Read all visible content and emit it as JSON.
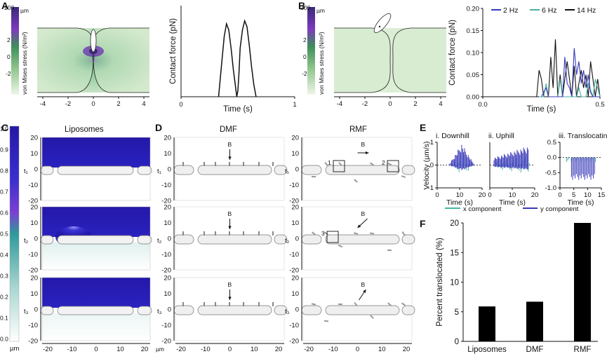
{
  "panels": {
    "A": "A",
    "B": "B",
    "C": "C",
    "D": "D",
    "E": "E",
    "F": "F"
  },
  "colorbar_AB": {
    "label": "von Mises stress (N/m²)",
    "unit": "µm",
    "ticks": [
      "200",
      "2",
      "0",
      "-2"
    ],
    "colors": {
      "top": "#3b2a7a",
      "mid": "#7a35b8",
      "green": "#3f8f5a",
      "low": "#e9f3e1"
    }
  },
  "stress_map_axis": {
    "ticks": [
      "-4",
      "-2",
      "0",
      "2",
      "4"
    ]
  },
  "chart_data": [
    {
      "id": "A-contact-force",
      "type": "line",
      "ylabel": "Contact force (pN)",
      "xlabel": "Time (s)",
      "xlim": [
        0,
        1
      ],
      "ylim": [
        0,
        30
      ],
      "xticks": [
        "0",
        "1"
      ],
      "yticks": [],
      "series": [
        {
          "name": "contact",
          "color": "#111111",
          "x": [
            0.33,
            0.34,
            0.36,
            0.38,
            0.4,
            0.42,
            0.44,
            0.46,
            0.48,
            0.49,
            0.5,
            0.51,
            0.52,
            0.54,
            0.56,
            0.58,
            0.6,
            0.62,
            0.64,
            0.66
          ],
          "y": [
            0,
            4,
            12,
            20,
            24,
            22,
            16,
            9,
            3,
            0,
            2,
            8,
            16,
            22,
            25,
            23,
            17,
            10,
            4,
            0
          ]
        }
      ]
    },
    {
      "id": "B-contact-force",
      "type": "line",
      "ylabel": "Contact force (pN)",
      "xlabel": "Time (s)",
      "xlim": [
        0,
        0.5
      ],
      "ylim": [
        0,
        0.2
      ],
      "xticks": [
        "0.0",
        "0.5"
      ],
      "yticks": [
        "0.00",
        "0.05",
        "0.10",
        "0.15",
        "0.20"
      ],
      "legend": [
        "2 Hz",
        "6 Hz",
        "14 Hz"
      ],
      "series": [
        {
          "name": "2 Hz",
          "color": "#3838b8",
          "x": [
            0.25,
            0.26,
            0.27,
            0.28,
            0.29,
            0.3,
            0.34,
            0.35,
            0.36,
            0.37,
            0.38,
            0.39,
            0.4,
            0.41,
            0.42,
            0.43,
            0.44,
            0.45,
            0.46,
            0.47,
            0.5
          ],
          "y": [
            0,
            0.01,
            0.02,
            0,
            0,
            0,
            0,
            0.09,
            0.03,
            0.02,
            0,
            0.11,
            0.05,
            0.08,
            0.03,
            0.06,
            0.02,
            0.05,
            0.01,
            0,
            0
          ]
        },
        {
          "name": "6 Hz",
          "color": "#47b3a6",
          "x": [
            0.24,
            0.26,
            0.27,
            0.28,
            0.3,
            0.32,
            0.33,
            0.34,
            0.36,
            0.4,
            0.41,
            0.42,
            0.44,
            0.45,
            0.47,
            0.48,
            0.5
          ],
          "y": [
            0,
            0,
            0.03,
            0,
            0,
            0,
            0.04,
            0,
            0,
            0,
            0.02,
            0,
            0,
            0.03,
            0,
            0.04,
            0
          ]
        },
        {
          "name": "14 Hz",
          "color": "#111111",
          "x": [
            0.2,
            0.23,
            0.24,
            0.25,
            0.26,
            0.28,
            0.29,
            0.3,
            0.31,
            0.32,
            0.33,
            0.34,
            0.36,
            0.38,
            0.39,
            0.4,
            0.42,
            0.43,
            0.44,
            0.45,
            0.46,
            0.48,
            0.49,
            0.5
          ],
          "y": [
            0,
            0,
            0.06,
            0.04,
            0,
            0,
            0.09,
            0.02,
            0.13,
            0,
            0.05,
            0,
            0.08,
            0,
            0.07,
            0,
            0.06,
            0.02,
            0.05,
            0,
            0.08,
            0,
            0.04,
            0
          ]
        }
      ]
    },
    {
      "id": "E-downhill",
      "type": "bar",
      "title": "i. Downhill",
      "xlabel": "Time (s)",
      "ylabel": "Velocity (µm/s)",
      "xlim": [
        0,
        20
      ],
      "ylim": [
        -1,
        1
      ],
      "xticks": [
        "0",
        "10",
        "20"
      ],
      "yticks": [
        "1",
        "0",
        "-1"
      ]
    },
    {
      "id": "E-uphill",
      "type": "bar",
      "title": "ii. Uphill",
      "xlabel": "Time (s)",
      "xlim": [
        0,
        20
      ],
      "ylim": [
        -1,
        1
      ],
      "xticks": [
        "0",
        "10",
        "20"
      ]
    },
    {
      "id": "E-translocating",
      "type": "bar",
      "title": "iii. Translocating",
      "xlabel": "Time (s)",
      "xlim": [
        0,
        15
      ],
      "ylim": [
        -1,
        0.5
      ],
      "xticks": [
        "0",
        "5",
        "10",
        "15"
      ],
      "yticks": [
        "0.5",
        "0.0",
        "-0.5",
        "-1.0"
      ]
    },
    {
      "id": "F-percent-translocated",
      "type": "bar",
      "ylabel": "Percent translocated (%)",
      "categories": [
        "Liposomes",
        "DMF",
        "RMF"
      ],
      "values": [
        5.9,
        6.7,
        20
      ],
      "ylim": [
        0,
        20
      ],
      "yticks": [
        "0",
        "5",
        "10",
        "15",
        "20"
      ]
    }
  ],
  "E_legend": {
    "x": "x component",
    "y": "y component",
    "x_color": "#47b3a6",
    "y_color": "#3838b8"
  },
  "C": {
    "title": "Liposomes",
    "colorbar_ticks": [
      "1.0",
      "0.9",
      "0.8",
      "0.7",
      "0.6",
      "0.5",
      "0.4",
      "0.3",
      "0.2",
      "0.1",
      "0.0"
    ],
    "unit": "µm",
    "xticks": [
      "-20",
      "-10",
      "0",
      "10",
      "20"
    ],
    "yticks": [
      "20",
      "10",
      "0",
      "-10",
      "-20"
    ],
    "times": [
      "t₁",
      "t₂",
      "t₃"
    ]
  },
  "D": {
    "title_dmf": "DMF",
    "title_rmf": "RMF",
    "field": "B",
    "xticks": [
      "-20",
      "-10",
      "0",
      "10",
      "20"
    ],
    "yticks": [
      "20",
      "10",
      "0",
      "-10",
      "-20"
    ],
    "times": [
      "t₁",
      "t₂",
      "t₃"
    ],
    "boxes": [
      "1",
      "2",
      "3"
    ],
    "unit": "µm"
  }
}
